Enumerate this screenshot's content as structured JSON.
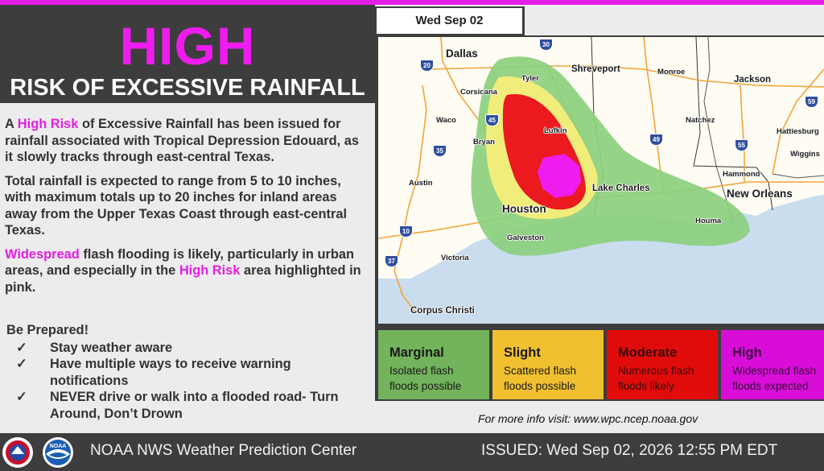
{
  "header": {
    "headline": "HIGH",
    "subheadline": "RISK OF EXCESSIVE RAINFALL"
  },
  "body": {
    "p1_prefix": "A ",
    "p1_highlight": "High Risk",
    "p1_rest": " of Excessive Rainfall has been issued for rainfall associated with Tropical Depression Edouard, as it slowly tracks through east-central Texas.",
    "p2": "Total rainfall is expected to range from 5 to 10 inches, with maximum totals up to 20 inches for inland areas away from the Upper Texas Coast through east-central Texas.",
    "p3_highlight": "Widespread",
    "p3_mid": " flash flooding is likely, particularly in urban areas, and especially in the ",
    "p3_highlight2": "High Risk",
    "p3_end": " area highlighted in pink."
  },
  "prepare": {
    "title": "Be Prepared!",
    "check_glyph": "✓",
    "items": [
      "Stay weather aware",
      "Have multiple ways to receive warning notifications",
      "NEVER drive or walk into a flooded road- Turn Around, Don’t Drown"
    ]
  },
  "map": {
    "date": "Wed Sep 02",
    "cities": {
      "dallas": "Dallas",
      "shreveport": "Shreveport",
      "monroe": "Monroe",
      "jackson": "Jackson",
      "tyler": "Tyler",
      "corsicana": "Corsicana",
      "waco": "Waco",
      "lufkin": "Lufkin",
      "natchez": "Natchez",
      "hattiesburg": "Hattiesburg",
      "wiggins": "Wiggins",
      "bryan": "Bryan",
      "austin": "Austin",
      "hammond": "Hammond",
      "lake_charles": "Lake Charles",
      "new_orleans": "New Orleans",
      "houston": "Houston",
      "houma": "Houma",
      "galveston": "Galveston",
      "victoria": "Victoria",
      "corpus_christi": "Corpus Christi"
    },
    "interstates": {
      "i30": "30",
      "i20": "20",
      "i45": "45",
      "i35": "35",
      "i49": "49",
      "i55": "55",
      "i59": "59",
      "i10": "10",
      "i37": "37"
    },
    "risk_colors": {
      "marginal": "#7dc36e",
      "slight": "#f5e96b",
      "moderate": "#e8141c",
      "high": "#ee1cee"
    }
  },
  "legend": [
    {
      "name": "Marginal",
      "desc1": "Isolated flash",
      "desc2": "floods possible",
      "color": "#72b35c",
      "text_color": "#1a1a1a"
    },
    {
      "name": "Slight",
      "desc1": "Scattered flash",
      "desc2": "floods possible",
      "color": "#f0c030",
      "text_color": "#1a1a1a"
    },
    {
      "name": "Moderate",
      "desc1": "Numerous flash",
      "desc2": "floods likely",
      "color": "#e00c0c",
      "text_color": "#3a0a0a"
    },
    {
      "name": "High",
      "desc1": "Widespread flash",
      "desc2": "floods expected",
      "color": "#d80ed8",
      "text_color": "#3a0a3a"
    }
  ],
  "more_info": "For more info visit: www.wpc.ncep.noaa.gov",
  "footer": {
    "org": "NOAA NWS Weather Prediction Center",
    "issued": "ISSUED:  Wed Sep 02, 2026 12:55 PM EDT",
    "nws_logo": "nws-logo",
    "noaa_logo": "noaa-logo",
    "noaa_logo_text": "NOAA"
  }
}
